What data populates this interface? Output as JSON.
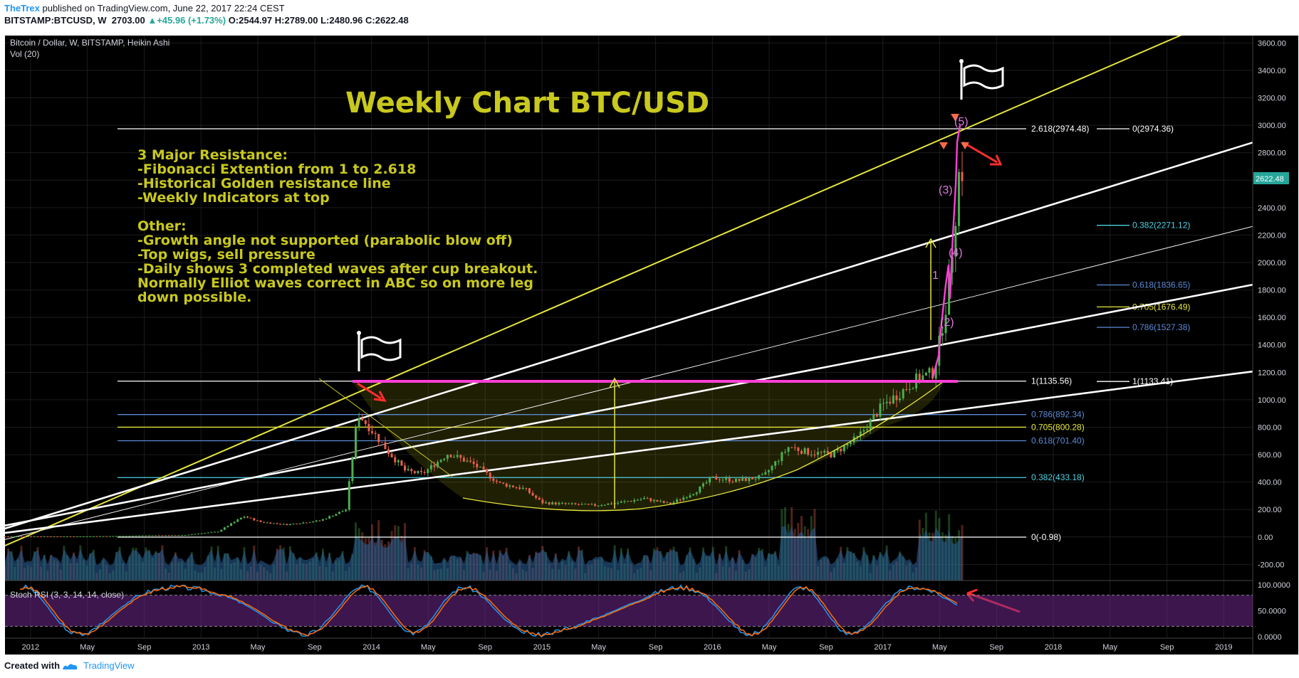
{
  "header": {
    "author": "TheTrex",
    "published": "published on TradingView.com, June 22, 2017 22:24 CEST",
    "symbol": "BITSTAMP:BTCUSD, W",
    "last": "2703.00",
    "change": "+45.96 (+1.73%)",
    "o_label": "O:",
    "o": "2544.97",
    "h_label": "H:",
    "h": "2789.00",
    "l_label": "L:",
    "l": "2480.96",
    "c_label": "C:",
    "c": "2622.48"
  },
  "pane": {
    "legend_title": "Bitcoin / Dollar, W, BITSTAMP, Heikin Ashi",
    "vol_label": "Vol (20)",
    "rsi_label": "Stoch RSI (3, 3, 14, 14, close)",
    "last_price_tag": "2622.48"
  },
  "annotations": {
    "title": "Weekly Chart BTC/USD",
    "notes": [
      "3 Major Resistance:",
      "-Fibonacci Extention from 1 to 2.618",
      "-Historical Golden resistance line",
      "-Weekly Indicators at top",
      "",
      "Other:",
      "-Growth angle not supported (parabolic blow off)",
      "-Top wigs, sell pressure",
      "-Daily shows 3 completed waves after cup breakout.",
      "Normally Elliot waves correct in ABC so on more leg",
      "down possible."
    ],
    "waves": [
      "(5)",
      "(3)",
      "(4)",
      "1",
      "(2)"
    ]
  },
  "fib_left": [
    {
      "label": "2.618(2974.48)",
      "price": 2974.48,
      "color": "#ffffff"
    },
    {
      "label": "1(1135.56)",
      "price": 1135.56,
      "color": "#ffffff"
    },
    {
      "label": "0.786(892.34)",
      "price": 892.34,
      "color": "#5b8bd6"
    },
    {
      "label": "0.705(800.28)",
      "price": 800.28,
      "color": "#e6e63c"
    },
    {
      "label": "0.618(701.40)",
      "price": 701.4,
      "color": "#5b8bd6"
    },
    {
      "label": "0.382(433.18)",
      "price": 433.18,
      "color": "#4dd0e1"
    },
    {
      "label": "0(-0.98)",
      "price": -0.98,
      "color": "#ffffff"
    }
  ],
  "fib_right": [
    {
      "label": "0(2974.36)",
      "price": 2974.36,
      "color": "#ffffff"
    },
    {
      "label": "0.382(2271.12)",
      "price": 2271.12,
      "color": "#4dd0e1"
    },
    {
      "label": "0.618(1836.65)",
      "price": 1836.65,
      "color": "#5b8bd6"
    },
    {
      "label": "0.705(1676.49)",
      "price": 1676.49,
      "color": "#e6e63c"
    },
    {
      "label": "0.786(1527.38)",
      "price": 1527.38,
      "color": "#5b8bd6"
    },
    {
      "label": "1(1133.41)",
      "price": 1133.41,
      "color": "#ffffff"
    }
  ],
  "footer": {
    "created_with": "Created with",
    "brand": "TradingView"
  },
  "chart_data": {
    "type": "candlestick",
    "title": "Bitcoin / Dollar, W, BITSTAMP, Heikin Ashi",
    "ylim": [
      -300,
      3700
    ],
    "y_ticks": [
      -200,
      0,
      200,
      400,
      600,
      800,
      1000,
      1200,
      1400,
      1600,
      1800,
      2000,
      2200,
      2400,
      2600,
      2800,
      3000,
      3200,
      3400,
      3600
    ],
    "y_tick_labels": [
      "-200.00",
      "0.00",
      "200.00",
      "400.00",
      "600.00",
      "800.00",
      "1000.00",
      "1200.00",
      "1400.00",
      "1600.00",
      "1800.00",
      "2000.00",
      "2200.00",
      "2400.00",
      "2600.00",
      "2800.00",
      "3000.00",
      "3200.00",
      "3400.00",
      "3600.00"
    ],
    "x_ticks": [
      "2012",
      "May",
      "Sep",
      "2013",
      "May",
      "Sep",
      "2014",
      "May",
      "Sep",
      "2015",
      "May",
      "Sep",
      "2016",
      "May",
      "Sep",
      "2017",
      "May",
      "Sep",
      "2018",
      "May",
      "Sep",
      "2019"
    ],
    "x_tick_dates": [
      2012.0,
      2012.333,
      2012.667,
      2013.0,
      2013.333,
      2013.667,
      2014.0,
      2014.333,
      2014.667,
      2015.0,
      2015.333,
      2015.667,
      2016.0,
      2016.333,
      2016.667,
      2017.0,
      2017.333,
      2017.667,
      2018.0,
      2018.333,
      2018.667,
      2019.0
    ],
    "xlim": [
      2011.85,
      2019.17
    ],
    "close_series": {
      "x": [
        2011.85,
        2012.1,
        2012.3,
        2012.5,
        2012.7,
        2012.9,
        2013.1,
        2013.25,
        2013.35,
        2013.5,
        2013.7,
        2013.85,
        2013.92,
        2014.0,
        2014.1,
        2014.2,
        2014.3,
        2014.45,
        2014.6,
        2014.75,
        2014.9,
        2015.0,
        2015.15,
        2015.3,
        2015.45,
        2015.6,
        2015.75,
        2015.9,
        2016.0,
        2016.15,
        2016.3,
        2016.45,
        2016.55,
        2016.7,
        2016.85,
        2017.0,
        2017.1,
        2017.2,
        2017.3,
        2017.38,
        2017.42,
        2017.45,
        2017.48
      ],
      "y": [
        5,
        5,
        5,
        7,
        12,
        13,
        40,
        150,
        110,
        90,
        120,
        200,
        900,
        780,
        620,
        480,
        460,
        610,
        530,
        390,
        350,
        250,
        240,
        230,
        250,
        280,
        240,
        330,
        430,
        410,
        440,
        660,
        620,
        600,
        720,
        960,
        1050,
        1150,
        1200,
        1750,
        2250,
        2700,
        2622
      ]
    },
    "volume_note": "Vol (20) histogram with 20-period moving average",
    "stoch_rsi": {
      "name": "Stoch RSI (3, 3, 14, 14, close)",
      "ylim": [
        0,
        100
      ],
      "y_ticks": [
        0,
        50,
        100
      ],
      "y_tick_labels": [
        "0.0000",
        "50.0000",
        "100.0000"
      ],
      "levels": [
        20,
        80
      ]
    }
  }
}
